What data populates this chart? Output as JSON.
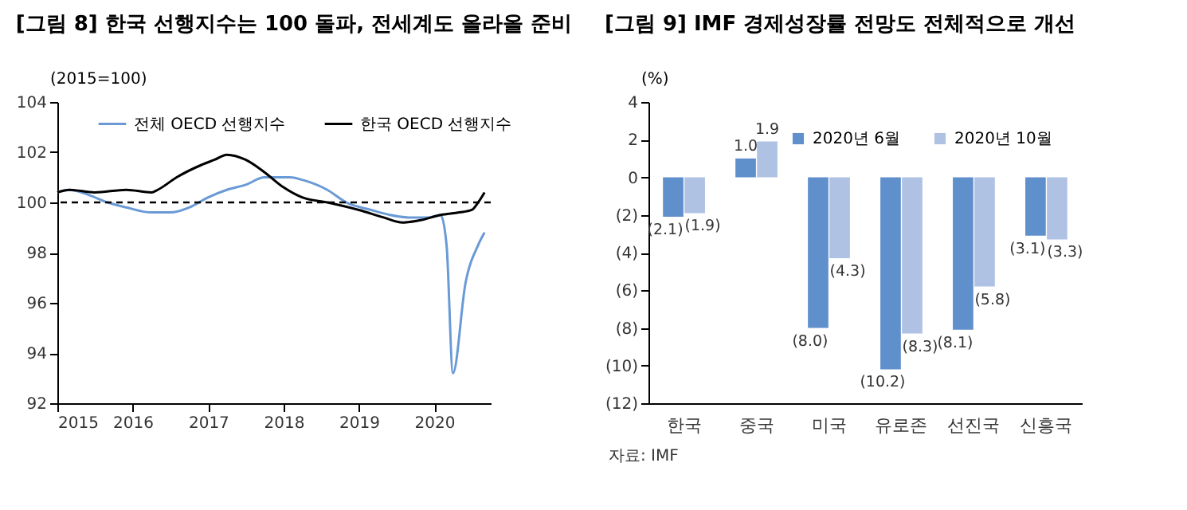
{
  "chart_data": [
    {
      "type": "line",
      "title": "[그림 8] 한국 선행지수는 100 돌파, 전세계도 올라올 준비",
      "ylabel": "(2015=100)",
      "xlim": [
        "2015-01",
        "2020-10"
      ],
      "xticks": [
        "2015",
        "2016",
        "2017",
        "2018",
        "2019",
        "2020"
      ],
      "ylim": [
        92,
        104
      ],
      "yticks": [
        92,
        94,
        96,
        98,
        100,
        102,
        104
      ],
      "legend": "top",
      "ref_lines": [
        {
          "axis": "y",
          "value": 100,
          "line_style": "dashed",
          "color": "#000000"
        }
      ],
      "series": [
        {
          "name": "전체 OECD 선행지수",
          "color": "#6a9ad6",
          "x": [
            "2015-01",
            "2015-03",
            "2015-06",
            "2015-09",
            "2015-12",
            "2016-04",
            "2016-07",
            "2016-10",
            "2017-01",
            "2017-04",
            "2017-07",
            "2017-10",
            "2018-02",
            "2018-04",
            "2018-08",
            "2018-11",
            "2019-03",
            "2019-06",
            "2019-09",
            "2019-12",
            "2020-02",
            "2020-03",
            "2020-04",
            "2020-06",
            "2020-08",
            "2020-09"
          ],
          "values": [
            100.4,
            100.5,
            100.3,
            100.0,
            99.8,
            99.6,
            99.6,
            99.8,
            100.2,
            100.5,
            100.7,
            101.0,
            101.0,
            100.9,
            100.5,
            100.0,
            99.7,
            99.5,
            99.4,
            99.4,
            99.5,
            98.3,
            93.2,
            96.8,
            98.3,
            98.8
          ]
        },
        {
          "name": "한국 OECD 선행지수",
          "color": "#000000",
          "x": [
            "2015-01",
            "2015-03",
            "2015-07",
            "2015-12",
            "2016-04",
            "2016-05",
            "2016-08",
            "2016-12",
            "2017-02",
            "2017-04",
            "2017-07",
            "2017-10",
            "2018-01",
            "2018-04",
            "2018-08",
            "2019-01",
            "2019-05",
            "2019-08",
            "2019-11",
            "2020-02",
            "2020-05",
            "2020-07",
            "2020-08",
            "2020-09"
          ],
          "values": [
            100.4,
            100.5,
            100.4,
            100.5,
            100.4,
            100.5,
            101.0,
            101.5,
            101.7,
            101.9,
            101.7,
            101.2,
            100.6,
            100.2,
            100.0,
            99.7,
            99.4,
            99.2,
            99.3,
            99.5,
            99.6,
            99.7,
            100.0,
            100.4
          ]
        }
      ]
    },
    {
      "type": "bar",
      "title": "[그림 9] IMF 경제성장률 전망도 전체적으로 개선",
      "ylabel": "(%)",
      "categories": [
        "한국",
        "중국",
        "미국",
        "유로존",
        "선진국",
        "신흥국"
      ],
      "ylim": [
        -12,
        4
      ],
      "yticks": [
        {
          "value": -12,
          "label": "(12)"
        },
        {
          "value": -10,
          "label": "(10)"
        },
        {
          "value": -8,
          "label": "(8)"
        },
        {
          "value": -6,
          "label": "(6)"
        },
        {
          "value": -4,
          "label": "(4)"
        },
        {
          "value": -2,
          "label": "(2)"
        },
        0,
        2,
        4
      ],
      "legend": "top right",
      "annotations": [
        "자료: IMF"
      ],
      "series": [
        {
          "name": "2020년 6월",
          "color": "#6090cc",
          "values": [
            -2.1,
            1.0,
            -8.0,
            -10.2,
            -8.1,
            -3.1
          ],
          "value_labels": [
            "(2.1)",
            "1.0",
            "(8.0)",
            "(10.2)",
            "(8.1)",
            "(3.1)"
          ]
        },
        {
          "name": "2020년 10월",
          "color": "#b0c2e4",
          "values": [
            -1.9,
            1.9,
            -4.3,
            -8.3,
            -5.8,
            -3.3
          ],
          "value_labels": [
            "(1.9)",
            "1.9",
            "(4.3)",
            "(8.3)",
            "(5.8)",
            "(3.3)"
          ]
        }
      ]
    }
  ]
}
